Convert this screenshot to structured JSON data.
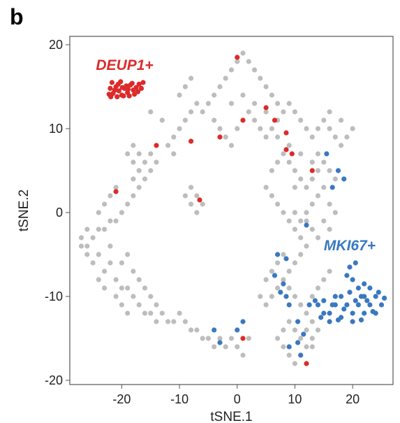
{
  "panel_label": "b",
  "chart_data": {
    "type": "scatter",
    "title": "",
    "xlabel": "tSNE.1",
    "ylabel": "tSNE.2",
    "xlim": [
      -29,
      27
    ],
    "ylim": [
      -20.5,
      21
    ],
    "xticks": [
      -20,
      -10,
      0,
      10,
      20
    ],
    "yticks": [
      -20,
      -10,
      0,
      10,
      20
    ],
    "x_tick_labels": [
      "-20",
      "-10",
      "0",
      "10",
      "20"
    ],
    "y_tick_labels": [
      "-20",
      "-10",
      "0",
      "10",
      "20"
    ],
    "grid": false,
    "colors": {
      "background_cells": "#bdbdbd",
      "DEUP1": "#dd2a2a",
      "MKI67": "#3a78c0",
      "frame": "#555555"
    },
    "annotations": [
      {
        "text": "DEUP1+",
        "x": -19.5,
        "y": 17,
        "color": "#dd2a2a"
      },
      {
        "text": "MKI67+",
        "x": 19.5,
        "y": -4.5,
        "color": "#3a78c0"
      }
    ],
    "series": [
      {
        "label_key": "background",
        "color": "#bdbdbd",
        "points": [
          [
            -18,
            8
          ],
          [
            -17,
            7
          ],
          [
            -18,
            6
          ],
          [
            -17,
            5
          ],
          [
            -16,
            6
          ],
          [
            -18,
            4
          ],
          [
            -15,
            7
          ],
          [
            -19,
            7
          ],
          [
            -16,
            4
          ],
          [
            -17,
            3
          ],
          [
            -15,
            5
          ],
          [
            -14,
            6
          ],
          [
            -18,
            2
          ],
          [
            -19,
            1
          ],
          [
            -20,
            0
          ],
          [
            -21,
            -1
          ],
          [
            -22,
            -1
          ],
          [
            -23,
            -2
          ],
          [
            -24,
            -2
          ],
          [
            -25,
            -3
          ],
          [
            -26,
            -4
          ],
          [
            -27,
            -4
          ],
          [
            -26,
            -5
          ],
          [
            -25,
            -6
          ],
          [
            -24,
            -5
          ],
          [
            -23,
            -7
          ],
          [
            -22,
            -6
          ],
          [
            -21,
            -8
          ],
          [
            -20,
            -9
          ],
          [
            -19,
            -9
          ],
          [
            -18,
            -10
          ],
          [
            -17,
            -11
          ],
          [
            -16,
            -12
          ],
          [
            -15,
            -12
          ],
          [
            -14,
            -13
          ],
          [
            -13,
            -12
          ],
          [
            -12,
            -13
          ],
          [
            -11,
            -13
          ],
          [
            -10,
            -12
          ],
          [
            -9,
            -13
          ],
          [
            -8,
            -14
          ],
          [
            -7,
            -14
          ],
          [
            -6,
            -15
          ],
          [
            -5,
            -15
          ],
          [
            -4,
            -16
          ],
          [
            -3,
            -15
          ],
          [
            -2,
            -16
          ],
          [
            -1,
            -15
          ],
          [
            0,
            -16
          ],
          [
            1,
            -17
          ],
          [
            2,
            -15
          ],
          [
            -24,
            0
          ],
          [
            -23,
            1
          ],
          [
            -22,
            2
          ],
          [
            -21,
            3
          ],
          [
            -26,
            -2
          ],
          [
            -27,
            -3
          ],
          [
            -22,
            -4
          ],
          [
            -20,
            -6
          ],
          [
            -19,
            -5
          ],
          [
            -18,
            -7
          ],
          [
            -17,
            -8
          ],
          [
            -16,
            -9
          ],
          [
            -15,
            -10
          ],
          [
            -14,
            -11
          ],
          [
            -20,
            -11
          ],
          [
            -21,
            -10
          ],
          [
            -23,
            -9
          ],
          [
            -24,
            -8
          ],
          [
            -19,
            -12
          ],
          [
            -8,
            3
          ],
          [
            -7,
            2
          ],
          [
            -6,
            1
          ],
          [
            -8,
            1
          ],
          [
            -7,
            0
          ],
          [
            -9,
            2
          ],
          [
            -15,
            12
          ],
          [
            -13,
            11
          ],
          [
            -11,
            9
          ],
          [
            -10,
            10
          ],
          [
            -9,
            11
          ],
          [
            -8,
            12
          ],
          [
            -7,
            13
          ],
          [
            -6,
            12
          ],
          [
            -5,
            13
          ],
          [
            -4,
            14
          ],
          [
            -3,
            15
          ],
          [
            -2,
            16
          ],
          [
            -1,
            17
          ],
          [
            0,
            18
          ],
          [
            1,
            19
          ],
          [
            2,
            18
          ],
          [
            3,
            17
          ],
          [
            4,
            16
          ],
          [
            5,
            15
          ],
          [
            6,
            14
          ],
          [
            7,
            13
          ],
          [
            -4,
            11
          ],
          [
            -3,
            10
          ],
          [
            -2,
            9
          ],
          [
            -1,
            8
          ],
          [
            0,
            10
          ],
          [
            1,
            11
          ],
          [
            2,
            12
          ],
          [
            3,
            11
          ],
          [
            4,
            10
          ],
          [
            5,
            9
          ],
          [
            6,
            10
          ],
          [
            7,
            11
          ],
          [
            8,
            12
          ],
          [
            9,
            13
          ],
          [
            10,
            12
          ],
          [
            11,
            11
          ],
          [
            12,
            10
          ],
          [
            13,
            9
          ],
          [
            14,
            10
          ],
          [
            15,
            11
          ],
          [
            16,
            10
          ],
          [
            17,
            9
          ],
          [
            18,
            8
          ],
          [
            19,
            9
          ],
          [
            20,
            10
          ],
          [
            18,
            11
          ],
          [
            16,
            12
          ],
          [
            14,
            7
          ],
          [
            15,
            6
          ],
          [
            16,
            5
          ],
          [
            17,
            4
          ],
          [
            15,
            3
          ],
          [
            14,
            2
          ],
          [
            13,
            1
          ],
          [
            12,
            0
          ],
          [
            11,
            -1
          ],
          [
            10,
            -2
          ],
          [
            9,
            -1
          ],
          [
            8,
            0
          ],
          [
            7,
            1
          ],
          [
            6,
            2
          ],
          [
            5,
            3
          ],
          [
            6,
            5
          ],
          [
            7,
            6
          ],
          [
            8,
            7
          ],
          [
            9,
            6
          ],
          [
            10,
            5
          ],
          [
            11,
            4
          ],
          [
            12,
            3
          ],
          [
            13,
            4
          ],
          [
            14,
            5
          ],
          [
            16,
            1
          ],
          [
            17,
            0
          ],
          [
            15,
            -1
          ],
          [
            16,
            -2
          ],
          [
            14,
            -3
          ],
          [
            13,
            -2
          ],
          [
            12,
            -4
          ],
          [
            11,
            -5
          ],
          [
            10,
            -6
          ],
          [
            9,
            -7
          ],
          [
            8,
            -8
          ],
          [
            7,
            -9
          ],
          [
            6,
            -10
          ],
          [
            5,
            -11
          ],
          [
            4,
            -10
          ],
          [
            5,
            -8
          ],
          [
            6,
            -7
          ],
          [
            7,
            -6
          ],
          [
            8,
            -5
          ],
          [
            9,
            -9
          ],
          [
            10,
            -10
          ],
          [
            11,
            -11
          ],
          [
            12,
            -12
          ],
          [
            13,
            -13
          ],
          [
            14,
            -14
          ],
          [
            13,
            -15
          ],
          [
            12,
            -16
          ],
          [
            11,
            -17
          ],
          [
            10,
            -18
          ],
          [
            9,
            -17
          ],
          [
            8,
            -16
          ],
          [
            7,
            -15
          ],
          [
            8,
            -14
          ],
          [
            9,
            -13
          ],
          [
            10,
            -14
          ],
          [
            11,
            -15
          ],
          [
            12,
            -14
          ],
          [
            13,
            -16
          ],
          [
            -10,
            14
          ],
          [
            -9,
            15
          ],
          [
            -8,
            16
          ],
          [
            -12,
            8
          ],
          [
            -11,
            7
          ],
          [
            3,
            13
          ],
          [
            5,
            12
          ],
          [
            7,
            9
          ],
          [
            9,
            8
          ],
          [
            11,
            7
          ],
          [
            13,
            6
          ],
          [
            1,
            14
          ],
          [
            -1,
            13
          ],
          [
            10,
            0
          ],
          [
            11,
            -3
          ],
          [
            12,
            -1
          ],
          [
            10,
            3
          ],
          [
            13,
            -10
          ],
          [
            14,
            -9
          ],
          [
            15,
            -8
          ],
          [
            16,
            -7
          ]
        ]
      },
      {
        "label_key": "DEUP1",
        "color": "#dd2a2a",
        "points": [
          [
            -22,
            14.8
          ],
          [
            -21.5,
            14.2
          ],
          [
            -21,
            15
          ],
          [
            -20.5,
            14.5
          ],
          [
            -20,
            14
          ],
          [
            -19.5,
            14.8
          ],
          [
            -19,
            14.3
          ],
          [
            -18.5,
            15.2
          ],
          [
            -18,
            14.6
          ],
          [
            -17.5,
            14.9
          ],
          [
            -17,
            15.3
          ],
          [
            -16.6,
            14.8
          ],
          [
            -22.2,
            14.1
          ],
          [
            -21.7,
            15.5
          ],
          [
            -20.8,
            13.8
          ],
          [
            -20.2,
            15.6
          ],
          [
            -19.7,
            13.9
          ],
          [
            -19.2,
            15.1
          ],
          [
            -18.7,
            13.9
          ],
          [
            -18.2,
            15.4
          ],
          [
            -17.8,
            14.1
          ],
          [
            -17.2,
            14.4
          ],
          [
            -21.2,
            14.6
          ],
          [
            -19.9,
            14.9
          ],
          [
            -18.9,
            14.7
          ],
          [
            -16.3,
            15.5
          ],
          [
            -20.6,
            15.3
          ],
          [
            -21.9,
            13.8
          ],
          [
            0,
            18.5
          ],
          [
            -14,
            8
          ],
          [
            -8,
            8.5
          ],
          [
            -3,
            9
          ],
          [
            1,
            11
          ],
          [
            5,
            12.5
          ],
          [
            6.5,
            11
          ],
          [
            8.5,
            9.5
          ],
          [
            8.5,
            7.5
          ],
          [
            9.5,
            7
          ],
          [
            13,
            5
          ],
          [
            -21,
            2.5
          ],
          [
            -6.5,
            1.5
          ],
          [
            1,
            -15
          ],
          [
            12,
            -18
          ]
        ]
      },
      {
        "label_key": "MKI67",
        "color": "#3a78c0",
        "points": [
          [
            15.5,
            7
          ],
          [
            17.5,
            5
          ],
          [
            18.5,
            4
          ],
          [
            16.5,
            3
          ],
          [
            12,
            -1.5
          ],
          [
            7,
            -5
          ],
          [
            8.5,
            -5.5
          ],
          [
            6.5,
            -7.5
          ],
          [
            8,
            -8.5
          ],
          [
            7.5,
            -9.5
          ],
          [
            8.5,
            -10
          ],
          [
            9,
            -11
          ],
          [
            -4,
            -14
          ],
          [
            -3,
            -15.5
          ],
          [
            0,
            -14
          ],
          [
            1,
            -13
          ],
          [
            10.5,
            -13
          ],
          [
            11.5,
            -14.5
          ],
          [
            10.5,
            -15.5
          ],
          [
            9,
            -16
          ],
          [
            11,
            -17
          ],
          [
            14,
            -11
          ],
          [
            15,
            -10.5
          ],
          [
            16,
            -12
          ],
          [
            17,
            -11
          ],
          [
            18,
            -10
          ],
          [
            19,
            -11
          ],
          [
            20,
            -12
          ],
          [
            21,
            -11
          ],
          [
            22,
            -10
          ],
          [
            23,
            -11
          ],
          [
            24,
            -10
          ],
          [
            25,
            -11
          ],
          [
            16,
            -13
          ],
          [
            18,
            -12.5
          ],
          [
            20,
            -13
          ],
          [
            22,
            -12
          ],
          [
            24,
            -12
          ],
          [
            21,
            -9
          ],
          [
            20,
            -8
          ],
          [
            19,
            -7.5
          ],
          [
            22,
            -8.5
          ],
          [
            23,
            -9
          ],
          [
            24.5,
            -9.5
          ],
          [
            25.5,
            -10.2
          ],
          [
            17,
            -10
          ],
          [
            15,
            -12
          ],
          [
            13.5,
            -10.5
          ],
          [
            19.5,
            -6.5
          ],
          [
            20.5,
            -6
          ],
          [
            22.5,
            -10.5
          ],
          [
            18.5,
            -11.5
          ],
          [
            21.5,
            -12.8
          ],
          [
            23.5,
            -11.8
          ],
          [
            17.5,
            -12.8
          ],
          [
            19.5,
            -9.5
          ],
          [
            20.5,
            -10.5
          ],
          [
            16.5,
            -11
          ],
          [
            21.5,
            -10
          ],
          [
            14.5,
            -12.5
          ],
          [
            12.5,
            -11
          ]
        ]
      }
    ]
  }
}
